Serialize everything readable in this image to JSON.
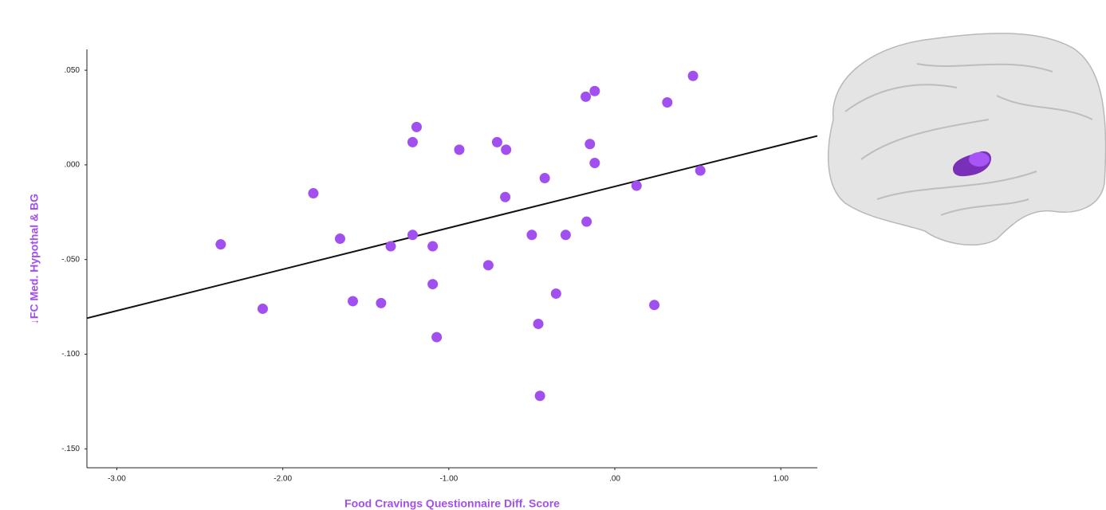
{
  "chart_data": {
    "type": "scatter",
    "x_label": "Food Cravings Questionnaire Diff. Score",
    "y_label": "↓FC Med. Hypothal & BG",
    "color": "#a24ff0",
    "x": [
      -2.374,
      -2.121,
      -1.816,
      -1.655,
      -1.578,
      -1.408,
      -1.35,
      -1.218,
      -1.218,
      -1.194,
      -1.097,
      -1.097,
      -1.073,
      -0.937,
      -0.762,
      -0.709,
      -0.655,
      -0.66,
      -0.5,
      -0.422,
      -0.354,
      -0.461,
      -0.451,
      -0.296,
      -0.175,
      -0.121,
      -0.15,
      -0.121,
      -0.17,
      0.131,
      0.238,
      0.316,
      0.471,
      0.515
    ],
    "values": [
      -0.042,
      -0.076,
      -0.015,
      -0.039,
      -0.072,
      -0.073,
      -0.043,
      -0.037,
      0.012,
      0.02,
      -0.043,
      -0.063,
      -0.091,
      0.008,
      -0.053,
      0.012,
      0.008,
      -0.017,
      -0.037,
      -0.007,
      -0.068,
      -0.084,
      -0.122,
      -0.037,
      0.036,
      0.039,
      0.011,
      0.001,
      -0.03,
      -0.011,
      -0.074,
      0.033,
      0.047,
      -0.003
    ],
    "fit": {
      "color": "#111111",
      "x": [
        -3.18,
        1.22
      ],
      "y": [
        -0.081,
        0.0153
      ]
    },
    "xlim": [
      -3.18,
      1.22
    ],
    "ylim": [
      -0.16,
      0.061
    ],
    "xticks": [
      {
        "value": -3,
        "label": "-3.00"
      },
      {
        "value": -2,
        "label": "-2.00"
      },
      {
        "value": -1,
        "label": "-1.00"
      },
      {
        "value": 0,
        "label": ".00"
      },
      {
        "value": 1,
        "label": "1.00"
      }
    ],
    "yticks": [
      {
        "value": 0.05,
        "label": ".050"
      },
      {
        "value": 0,
        "label": ".000"
      },
      {
        "value": -0.05,
        "label": "-.050"
      },
      {
        "value": -0.1,
        "label": "-.100"
      },
      {
        "value": -0.15,
        "label": "-.150"
      }
    ],
    "grid": false
  }
}
